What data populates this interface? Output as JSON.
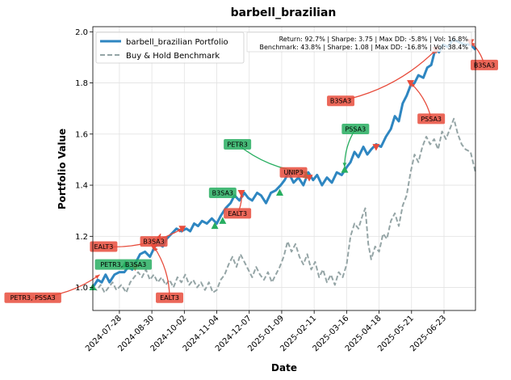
{
  "chart_data": {
    "type": "line",
    "title": "barbell_brazilian",
    "xlabel": "Date",
    "ylabel": "Portfolio Value",
    "ylim": [
      0.91,
      2.02
    ],
    "yticks": [
      1.0,
      1.2,
      1.4,
      1.6,
      1.8,
      2.0
    ],
    "ytick_labels": [
      "1.0",
      "1.2",
      "1.4",
      "1.6",
      "1.8",
      "2.0"
    ],
    "xlim": [
      "2024-07-01",
      "2025-07-25"
    ],
    "xticks": [
      "2024-07-28",
      "2024-08-30",
      "2024-10-02",
      "2024-11-04",
      "2024-12-07",
      "2025-01-09",
      "2025-02-11",
      "2025-03-16",
      "2025-04-18",
      "2025-05-21",
      "2025-06-23"
    ],
    "grid": true,
    "legend_position": "top-left",
    "stats_lines": [
      "Return: 92.7% | Sharpe: 3.75 | Max DD: -5.8% | Vol: 16.8%",
      "Benchmark: 43.8% | Sharpe: 1.08 | Max DD: -16.8% | Vol: 38.4%"
    ],
    "series": [
      {
        "name": "barbell_brazilian Portfolio",
        "color": "#2e86c1",
        "style": "solid",
        "points": [
          [
            "2024-07-01",
            1.0
          ],
          [
            "2024-07-06",
            1.03
          ],
          [
            "2024-07-10",
            1.02
          ],
          [
            "2024-07-14",
            1.05
          ],
          [
            "2024-07-18",
            1.02
          ],
          [
            "2024-07-23",
            1.05
          ],
          [
            "2024-07-28",
            1.06
          ],
          [
            "2024-08-02",
            1.06
          ],
          [
            "2024-08-06",
            1.08
          ],
          [
            "2024-08-10",
            1.07
          ],
          [
            "2024-08-14",
            1.1
          ],
          [
            "2024-08-18",
            1.13
          ],
          [
            "2024-08-23",
            1.14
          ],
          [
            "2024-08-28",
            1.12
          ],
          [
            "2024-09-02",
            1.16
          ],
          [
            "2024-09-06",
            1.17
          ],
          [
            "2024-09-10",
            1.16
          ],
          [
            "2024-09-14",
            1.19
          ],
          [
            "2024-09-19",
            1.21
          ],
          [
            "2024-09-24",
            1.23
          ],
          [
            "2024-09-29",
            1.22
          ],
          [
            "2024-10-04",
            1.23
          ],
          [
            "2024-10-08",
            1.22
          ],
          [
            "2024-10-12",
            1.25
          ],
          [
            "2024-10-16",
            1.24
          ],
          [
            "2024-10-20",
            1.26
          ],
          [
            "2024-10-25",
            1.25
          ],
          [
            "2024-10-30",
            1.27
          ],
          [
            "2024-11-04",
            1.25
          ],
          [
            "2024-11-08",
            1.28
          ],
          [
            "2024-11-13",
            1.31
          ],
          [
            "2024-11-18",
            1.33
          ],
          [
            "2024-11-22",
            1.36
          ],
          [
            "2024-11-27",
            1.34
          ],
          [
            "2024-12-02",
            1.37
          ],
          [
            "2024-12-06",
            1.35
          ],
          [
            "2024-12-10",
            1.34
          ],
          [
            "2024-12-15",
            1.37
          ],
          [
            "2024-12-19",
            1.36
          ],
          [
            "2024-12-24",
            1.33
          ],
          [
            "2024-12-29",
            1.37
          ],
          [
            "2025-01-03",
            1.38
          ],
          [
            "2025-01-08",
            1.4
          ],
          [
            "2025-01-12",
            1.42
          ],
          [
            "2025-01-16",
            1.45
          ],
          [
            "2025-01-21",
            1.41
          ],
          [
            "2025-01-26",
            1.43
          ],
          [
            "2025-01-31",
            1.4
          ],
          [
            "2025-02-05",
            1.45
          ],
          [
            "2025-02-10",
            1.42
          ],
          [
            "2025-02-14",
            1.44
          ],
          [
            "2025-02-19",
            1.4
          ],
          [
            "2025-02-24",
            1.43
          ],
          [
            "2025-03-01",
            1.41
          ],
          [
            "2025-03-06",
            1.45
          ],
          [
            "2025-03-11",
            1.44
          ],
          [
            "2025-03-16",
            1.47
          ],
          [
            "2025-03-20",
            1.49
          ],
          [
            "2025-03-24",
            1.53
          ],
          [
            "2025-03-28",
            1.51
          ],
          [
            "2025-04-02",
            1.55
          ],
          [
            "2025-04-06",
            1.52
          ],
          [
            "2025-04-10",
            1.54
          ],
          [
            "2025-04-15",
            1.56
          ],
          [
            "2025-04-20",
            1.55
          ],
          [
            "2025-04-25",
            1.59
          ],
          [
            "2025-04-30",
            1.62
          ],
          [
            "2025-05-04",
            1.67
          ],
          [
            "2025-05-08",
            1.65
          ],
          [
            "2025-05-12",
            1.72
          ],
          [
            "2025-05-16",
            1.75
          ],
          [
            "2025-05-20",
            1.79
          ],
          [
            "2025-05-24",
            1.8
          ],
          [
            "2025-05-28",
            1.83
          ],
          [
            "2025-06-02",
            1.82
          ],
          [
            "2025-06-06",
            1.86
          ],
          [
            "2025-06-10",
            1.87
          ],
          [
            "2025-06-14",
            1.93
          ],
          [
            "2025-06-18",
            1.92
          ],
          [
            "2025-06-22",
            1.95
          ],
          [
            "2025-06-27",
            1.94
          ],
          [
            "2025-07-02",
            1.97
          ],
          [
            "2025-07-08",
            1.96
          ],
          [
            "2025-07-14",
            1.95
          ],
          [
            "2025-07-20",
            1.95
          ],
          [
            "2025-07-25",
            1.93
          ]
        ]
      },
      {
        "name": "Buy & Hold Benchmark",
        "color": "#95a5a6",
        "style": "dashed",
        "points": [
          [
            "2024-07-01",
            1.0
          ],
          [
            "2024-07-05",
            0.99
          ],
          [
            "2024-07-09",
            1.01
          ],
          [
            "2024-07-13",
            0.98
          ],
          [
            "2024-07-17",
            1.0
          ],
          [
            "2024-07-21",
            1.02
          ],
          [
            "2024-07-25",
            0.99
          ],
          [
            "2024-07-30",
            1.01
          ],
          [
            "2024-08-04",
            0.98
          ],
          [
            "2024-08-08",
            1.02
          ],
          [
            "2024-08-12",
            1.04
          ],
          [
            "2024-08-16",
            1.06
          ],
          [
            "2024-08-20",
            1.04
          ],
          [
            "2024-08-24",
            1.07
          ],
          [
            "2024-08-28",
            1.03
          ],
          [
            "2024-09-01",
            1.05
          ],
          [
            "2024-09-05",
            1.02
          ],
          [
            "2024-09-09",
            1.04
          ],
          [
            "2024-09-13",
            1.01
          ],
          [
            "2024-09-17",
            1.03
          ],
          [
            "2024-09-21",
            1.0
          ],
          [
            "2024-09-25",
            1.04
          ],
          [
            "2024-09-29",
            1.02
          ],
          [
            "2024-10-03",
            1.05
          ],
          [
            "2024-10-07",
            1.01
          ],
          [
            "2024-10-11",
            1.03
          ],
          [
            "2024-10-15",
            1.0
          ],
          [
            "2024-10-19",
            1.02
          ],
          [
            "2024-10-23",
            0.99
          ],
          [
            "2024-10-27",
            1.02
          ],
          [
            "2024-10-31",
            0.98
          ],
          [
            "2024-11-04",
            0.99
          ],
          [
            "2024-11-08",
            1.03
          ],
          [
            "2024-11-12",
            1.05
          ],
          [
            "2024-11-16",
            1.09
          ],
          [
            "2024-11-20",
            1.12
          ],
          [
            "2024-11-24",
            1.08
          ],
          [
            "2024-11-28",
            1.13
          ],
          [
            "2024-12-02",
            1.1
          ],
          [
            "2024-12-06",
            1.07
          ],
          [
            "2024-12-10",
            1.04
          ],
          [
            "2024-12-14",
            1.08
          ],
          [
            "2024-12-18",
            1.05
          ],
          [
            "2024-12-22",
            1.03
          ],
          [
            "2024-12-26",
            1.06
          ],
          [
            "2024-12-30",
            1.02
          ],
          [
            "2025-01-03",
            1.05
          ],
          [
            "2025-01-07",
            1.08
          ],
          [
            "2025-01-11",
            1.12
          ],
          [
            "2025-01-15",
            1.18
          ],
          [
            "2025-01-19",
            1.14
          ],
          [
            "2025-01-23",
            1.17
          ],
          [
            "2025-01-27",
            1.12
          ],
          [
            "2025-01-31",
            1.09
          ],
          [
            "2025-02-04",
            1.13
          ],
          [
            "2025-02-08",
            1.07
          ],
          [
            "2025-02-12",
            1.1
          ],
          [
            "2025-02-16",
            1.04
          ],
          [
            "2025-02-20",
            1.07
          ],
          [
            "2025-02-24",
            1.02
          ],
          [
            "2025-02-28",
            1.05
          ],
          [
            "2025-03-04",
            1.01
          ],
          [
            "2025-03-08",
            1.06
          ],
          [
            "2025-03-12",
            1.04
          ],
          [
            "2025-03-16",
            1.09
          ],
          [
            "2025-03-20",
            1.2
          ],
          [
            "2025-03-24",
            1.25
          ],
          [
            "2025-03-28",
            1.23
          ],
          [
            "2025-04-01",
            1.28
          ],
          [
            "2025-04-04",
            1.31
          ],
          [
            "2025-04-07",
            1.17
          ],
          [
            "2025-04-10",
            1.11
          ],
          [
            "2025-04-14",
            1.16
          ],
          [
            "2025-04-18",
            1.14
          ],
          [
            "2025-04-22",
            1.21
          ],
          [
            "2025-04-26",
            1.19
          ],
          [
            "2025-04-30",
            1.26
          ],
          [
            "2025-05-04",
            1.29
          ],
          [
            "2025-05-08",
            1.24
          ],
          [
            "2025-05-12",
            1.32
          ],
          [
            "2025-05-16",
            1.36
          ],
          [
            "2025-05-20",
            1.45
          ],
          [
            "2025-05-24",
            1.52
          ],
          [
            "2025-05-28",
            1.49
          ],
          [
            "2025-06-01",
            1.55
          ],
          [
            "2025-06-05",
            1.59
          ],
          [
            "2025-06-09",
            1.56
          ],
          [
            "2025-06-13",
            1.58
          ],
          [
            "2025-06-17",
            1.54
          ],
          [
            "2025-06-21",
            1.61
          ],
          [
            "2025-06-25",
            1.58
          ],
          [
            "2025-06-29",
            1.62
          ],
          [
            "2025-07-03",
            1.66
          ],
          [
            "2025-07-07",
            1.6
          ],
          [
            "2025-07-11",
            1.56
          ],
          [
            "2025-07-15",
            1.54
          ],
          [
            "2025-07-20",
            1.53
          ],
          [
            "2025-07-25",
            1.45
          ]
        ]
      }
    ],
    "trades": [
      {
        "type": "buy",
        "date": "2024-07-01",
        "value": 1.0
      },
      {
        "type": "buy",
        "date": "2024-08-03",
        "value": 1.09
      },
      {
        "type": "buy",
        "date": "2024-11-02",
        "value": 1.24
      },
      {
        "type": "buy",
        "date": "2024-11-10",
        "value": 1.26
      },
      {
        "type": "buy",
        "date": "2025-01-07",
        "value": 1.37
      },
      {
        "type": "buy",
        "date": "2025-02-03",
        "value": 1.44
      },
      {
        "type": "buy",
        "date": "2025-03-14",
        "value": 1.46
      },
      {
        "type": "sell",
        "date": "2024-08-13",
        "value": 1.08
      },
      {
        "type": "sell",
        "date": "2024-09-01",
        "value": 1.16
      },
      {
        "type": "sell",
        "date": "2024-09-30",
        "value": 1.23
      },
      {
        "type": "sell",
        "date": "2024-11-29",
        "value": 1.37
      },
      {
        "type": "sell",
        "date": "2025-02-06",
        "value": 1.43
      },
      {
        "type": "sell",
        "date": "2025-04-15",
        "value": 1.55
      },
      {
        "type": "sell",
        "date": "2025-05-20",
        "value": 1.8
      },
      {
        "type": "sell",
        "date": "2025-06-15",
        "value": 1.93
      },
      {
        "type": "sell",
        "date": "2025-07-20",
        "value": 1.96
      }
    ],
    "annotations": [
      {
        "text": "PETR3, PSSA3",
        "kind": "sell",
        "arrow_from": [
          "2024-05-01",
          0.96
        ],
        "arrow_to": [
          "2024-07-08",
          1.05
        ]
      },
      {
        "text": "PETR3, B3SA3",
        "kind": "buy",
        "arrow_from": [
          "2024-08-01",
          1.09
        ],
        "arrow_to": [
          "2024-08-03",
          1.09
        ]
      },
      {
        "text": "EALT3",
        "kind": "sell",
        "arrow_from": [
          "2024-07-12",
          1.16
        ],
        "arrow_to": [
          "2024-09-30",
          1.23
        ]
      },
      {
        "text": "B3SA3",
        "kind": "sell",
        "arrow_from": [
          "2024-09-01",
          1.18
        ],
        "arrow_to": [
          "2024-09-08",
          1.21
        ]
      },
      {
        "text": "EALT3",
        "kind": "sell",
        "arrow_from": [
          "2024-09-17",
          0.96
        ],
        "arrow_to": [
          "2024-09-01",
          1.16
        ]
      },
      {
        "text": "B3SA3",
        "kind": "buy",
        "arrow_from": [
          "2024-11-10",
          1.37
        ],
        "arrow_to": [
          "2024-11-10",
          1.37
        ]
      },
      {
        "text": "EALT3",
        "kind": "sell",
        "arrow_from": [
          "2024-11-25",
          1.29
        ],
        "arrow_to": [
          "2024-11-29",
          1.37
        ]
      },
      {
        "text": "PETR3",
        "kind": "buy",
        "arrow_from": [
          "2024-11-25",
          1.56
        ],
        "arrow_to": [
          "2025-02-03",
          1.45
        ]
      },
      {
        "text": "UNIP3",
        "kind": "sell",
        "arrow_from": [
          "2025-01-21",
          1.45
        ],
        "arrow_to": [
          "2025-02-06",
          1.43
        ]
      },
      {
        "text": "PSSA3",
        "kind": "buy",
        "arrow_from": [
          "2025-03-25",
          1.62
        ],
        "arrow_to": [
          "2025-03-14",
          1.47
        ]
      },
      {
        "text": "B3SA3",
        "kind": "sell",
        "arrow_from": [
          "2025-03-10",
          1.73
        ],
        "arrow_to": [
          "2025-06-15",
          1.93
        ]
      },
      {
        "text": "PSSA3",
        "kind": "sell",
        "arrow_from": [
          "2025-06-10",
          1.66
        ],
        "arrow_to": [
          "2025-05-20",
          1.8
        ]
      },
      {
        "text": "B3SA3",
        "kind": "sell",
        "arrow_from": [
          "2025-08-05",
          1.87
        ],
        "arrow_to": [
          "2025-07-20",
          1.96
        ]
      }
    ]
  },
  "colors": {
    "portfolio": "#2e86c1",
    "benchmark": "#95a5a6",
    "buy": "#27ae60",
    "sell": "#e74c3c"
  }
}
